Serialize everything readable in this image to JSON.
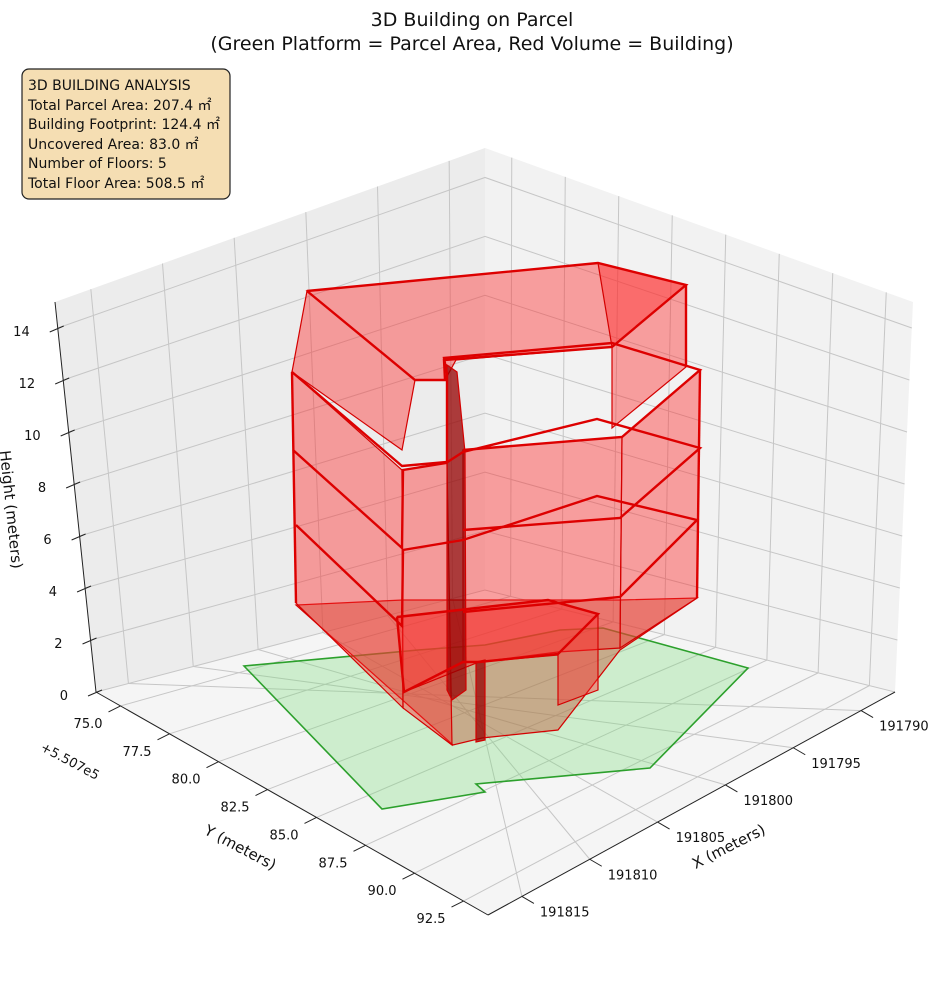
{
  "chart_data": {
    "type": "3d-polygon",
    "title_line1": "3D Building on Parcel",
    "title_line2": "(Green Platform = Parcel Area, Red Volume = Building)",
    "xlabel": "X (meters)",
    "ylabel": "Y (meters)",
    "zlabel": "Height (meters)",
    "y_offset_label": "+5.507e5",
    "x_ticks": [
      "191790",
      "191795",
      "191800",
      "191805",
      "191810",
      "191815"
    ],
    "y_ticks": [
      "75.0",
      "77.5",
      "80.0",
      "82.5",
      "85.0",
      "87.5",
      "90.0",
      "92.5"
    ],
    "z_ticks": [
      "0",
      "2",
      "4",
      "6",
      "8",
      "10",
      "12",
      "14"
    ],
    "zlim": [
      0,
      15
    ],
    "analysis_box": {
      "line1": "3D BUILDING ANALYSIS",
      "line2": "Total Parcel Area: 207.4 ㎡",
      "line3": "Building Footprint: 124.4 ㎡",
      "line4": "Uncovered Area: 83.0 ㎡",
      "line5": "Number of Floors: 5",
      "line6": "Total Floor Area: 508.5 ㎡"
    },
    "summary": {
      "total_parcel_area_m2": 207.4,
      "building_footprint_m2": 124.4,
      "uncovered_area_m2": 83.0,
      "number_of_floors": 5,
      "total_floor_area_m2": 508.5
    },
    "colors": {
      "parcel_fill": "#b8ecb8",
      "parcel_edge": "#2ca02c",
      "building_fill": "#ff2828",
      "building_edge": "#dd0000",
      "info_box_bg": "#f5deb3"
    },
    "grid": true
  }
}
